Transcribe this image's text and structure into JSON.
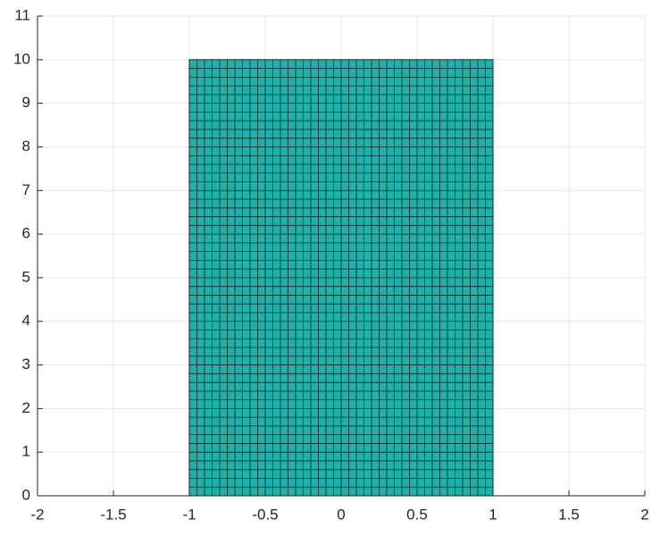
{
  "chart_data": {
    "type": "mesh",
    "mesh": {
      "x": [
        -1,
        1
      ],
      "y": [
        0,
        10
      ],
      "columns": 40,
      "rows": 50,
      "color": "#20b2aa",
      "edge_color": "#0a2a2a"
    },
    "xlim": [
      -2,
      2
    ],
    "xticks": [
      -2,
      -1.5,
      -1,
      -0.5,
      0,
      0.5,
      1,
      1.5,
      2
    ],
    "ylim": [
      0,
      11
    ],
    "yticks": [
      0,
      1,
      2,
      3,
      4,
      5,
      6,
      7,
      8,
      9,
      10,
      11
    ],
    "grid": true
  }
}
